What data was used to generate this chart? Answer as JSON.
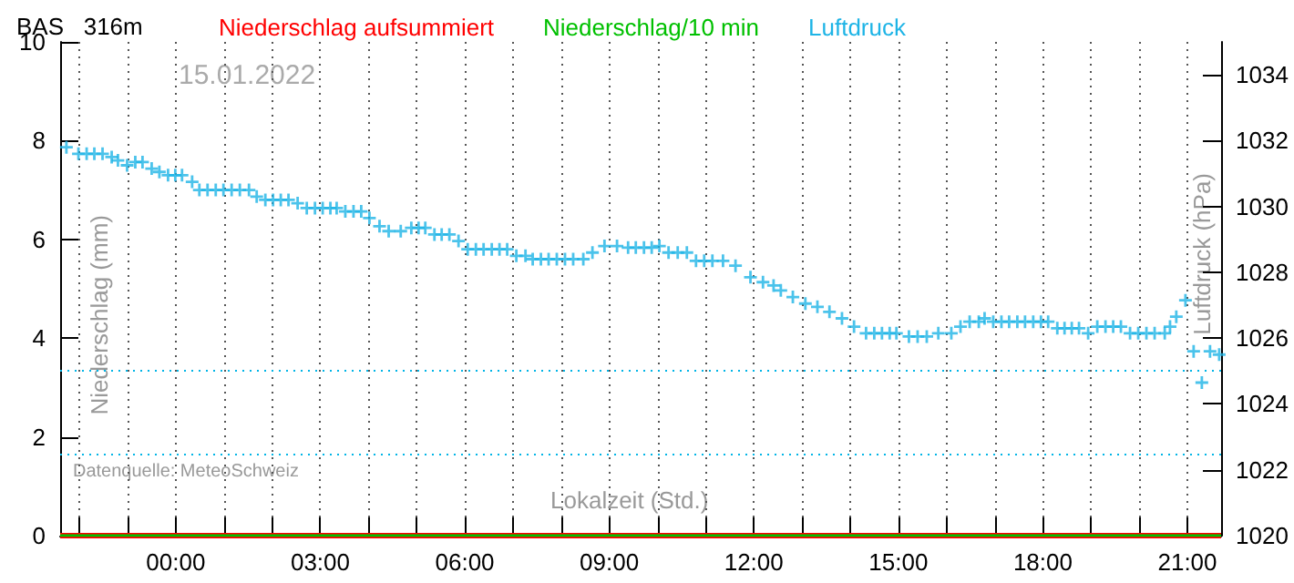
{
  "chart_data": {
    "type": "scatter",
    "title": "BAS   316m",
    "xlabel": "Lokalzeit (Std.)",
    "ylabel": "Niederschlag (mm)",
    "y2label": "Luftdruck (hPa)",
    "annotations": [
      "15.01.2022",
      "Datenquelle: MeteoSchweiz"
    ],
    "xlim": [
      -2.4,
      21.7
    ],
    "xticks": [
      {
        "value": -2,
        "label": null
      },
      {
        "value": -1,
        "label": null
      },
      {
        "value": 0,
        "label": "00:00"
      },
      {
        "value": 1,
        "label": null
      },
      {
        "value": 2,
        "label": null
      },
      {
        "value": 3,
        "label": "03:00"
      },
      {
        "value": 4,
        "label": null
      },
      {
        "value": 5,
        "label": null
      },
      {
        "value": 6,
        "label": "06:00"
      },
      {
        "value": 7,
        "label": null
      },
      {
        "value": 8,
        "label": null
      },
      {
        "value": 9,
        "label": "09:00"
      },
      {
        "value": 10,
        "label": null
      },
      {
        "value": 11,
        "label": null
      },
      {
        "value": 12,
        "label": "12:00"
      },
      {
        "value": 13,
        "label": null
      },
      {
        "value": 14,
        "label": null
      },
      {
        "value": 15,
        "label": "15:00"
      },
      {
        "value": 16,
        "label": null
      },
      {
        "value": 17,
        "label": null
      },
      {
        "value": 18,
        "label": "18:00"
      },
      {
        "value": 19,
        "label": null
      },
      {
        "value": 20,
        "label": null
      },
      {
        "value": 21,
        "label": "21:00"
      }
    ],
    "ylim": [
      0,
      10
    ],
    "yticks": [
      0,
      2,
      4,
      6,
      8,
      10
    ],
    "y2lim": [
      1020,
      1035
    ],
    "y2ticks": [
      1020,
      1022,
      1024,
      1026,
      1028,
      1030,
      1032,
      1034
    ],
    "grid": "x",
    "legend": "top left",
    "ref_lines": [
      {
        "axis": "y2",
        "value": 1025,
        "color": "#00b4e6",
        "line_style": "dotted"
      },
      {
        "axis": "y2",
        "value": 1022.5,
        "color": "#00b4e6",
        "line_style": "dotted"
      }
    ],
    "series": [
      {
        "name": "Niederschlag aufsummiert",
        "type": "line",
        "color": "#ff0000",
        "x": [
          -2.4,
          21.7
        ],
        "values": [
          0,
          0
        ]
      },
      {
        "name": "Niederschlag/10 min",
        "type": "line",
        "color": "#00c000",
        "x": [
          -2.4,
          21.7
        ],
        "values": [
          0,
          0
        ]
      },
      {
        "name": "Luftdruck",
        "axis": "y2",
        "color": "#1eb4e6",
        "marker": "cross",
        "x": [
          -2.27,
          -2.02,
          -1.85,
          -1.69,
          -1.52,
          -1.33,
          -1.2,
          -1.01,
          -0.84,
          -0.69,
          -0.5,
          -0.34,
          -0.16,
          -0.01,
          0.13,
          0.34,
          0.49,
          0.66,
          0.83,
          0.99,
          1.16,
          1.33,
          1.52,
          1.68,
          1.86,
          2.02,
          2.18,
          2.34,
          2.53,
          2.72,
          2.89,
          3.05,
          3.21,
          3.34,
          3.52,
          3.69,
          3.85,
          4.02,
          4.23,
          4.42,
          4.67,
          4.89,
          5.04,
          5.18,
          5.37,
          5.52,
          5.68,
          5.87,
          6.06,
          6.23,
          6.39,
          6.56,
          6.72,
          6.88,
          7.07,
          7.26,
          7.41,
          7.58,
          7.74,
          7.91,
          8.08,
          8.25,
          8.46,
          8.65,
          8.9,
          9.16,
          9.39,
          9.55,
          9.72,
          9.88,
          10.04,
          10.23,
          10.42,
          10.61,
          10.8,
          10.97,
          11.14,
          11.36,
          11.62,
          11.93,
          12.19,
          12.41,
          12.56,
          12.81,
          13.07,
          13.32,
          13.57,
          13.83,
          14.08,
          14.33,
          14.5,
          14.66,
          14.82,
          14.96,
          15.22,
          15.4,
          15.59,
          15.83,
          16.1,
          16.29,
          16.48,
          16.67,
          16.79,
          16.97,
          17.14,
          17.3,
          17.47,
          17.63,
          17.8,
          17.96,
          18.11,
          18.3,
          18.45,
          18.6,
          18.75,
          18.94,
          19.13,
          19.3,
          19.46,
          19.62,
          19.81,
          19.98,
          20.15,
          20.32,
          20.53,
          20.64,
          20.77,
          20.96,
          21.13,
          21.3,
          21.47,
          21.66
        ],
        "values": [
          1031.8,
          1031.6,
          1031.6,
          1031.6,
          1031.6,
          1031.5,
          1031.4,
          1031.25,
          1031.35,
          1031.35,
          1031.15,
          1031.05,
          1030.95,
          1030.95,
          1030.95,
          1030.75,
          1030.5,
          1030.5,
          1030.5,
          1030.5,
          1030.5,
          1030.5,
          1030.5,
          1030.3,
          1030.2,
          1030.2,
          1030.2,
          1030.2,
          1030.1,
          1029.95,
          1029.95,
          1029.95,
          1029.95,
          1029.95,
          1029.85,
          1029.85,
          1029.85,
          1029.65,
          1029.4,
          1029.25,
          1029.25,
          1029.35,
          1029.35,
          1029.35,
          1029.15,
          1029.15,
          1029.15,
          1028.95,
          1028.7,
          1028.7,
          1028.7,
          1028.7,
          1028.7,
          1028.7,
          1028.5,
          1028.5,
          1028.4,
          1028.4,
          1028.4,
          1028.4,
          1028.4,
          1028.4,
          1028.4,
          1028.6,
          1028.8,
          1028.8,
          1028.75,
          1028.75,
          1028.75,
          1028.75,
          1028.8,
          1028.6,
          1028.6,
          1028.6,
          1028.35,
          1028.35,
          1028.35,
          1028.35,
          1028.2,
          1027.85,
          1027.7,
          1027.6,
          1027.45,
          1027.25,
          1027.05,
          1026.95,
          1026.8,
          1026.6,
          1026.35,
          1026.15,
          1026.15,
          1026.15,
          1026.15,
          1026.15,
          1026.05,
          1026.05,
          1026.05,
          1026.15,
          1026.15,
          1026.35,
          1026.5,
          1026.5,
          1026.6,
          1026.5,
          1026.5,
          1026.5,
          1026.5,
          1026.5,
          1026.5,
          1026.5,
          1026.5,
          1026.3,
          1026.3,
          1026.3,
          1026.3,
          1026.15,
          1026.35,
          1026.35,
          1026.35,
          1026.35,
          1026.15,
          1026.15,
          1026.15,
          1026.15,
          1026.15,
          1026.35,
          1026.65,
          1027.15,
          1025.6,
          1024.65,
          1025.6,
          1025.5
        ]
      }
    ]
  }
}
